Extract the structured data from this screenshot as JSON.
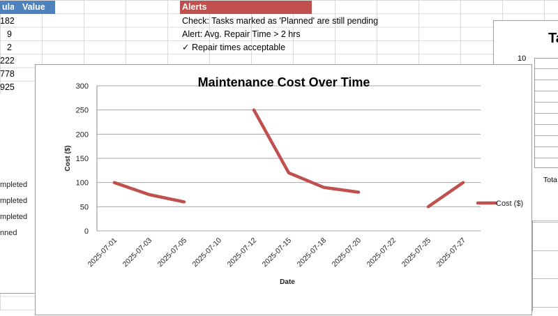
{
  "sheet": {
    "table_header": {
      "formula_col": "ula",
      "value_col": "Value"
    },
    "formula_values": [
      "182",
      "9",
      "2",
      "222",
      "778",
      "925"
    ],
    "alerts": {
      "header": "Alerts",
      "items": [
        "Check: Tasks marked as 'Planned' are still pending",
        "Alert: Avg. Repair Time > 2 hrs",
        "✓ Repair times acceptable"
      ]
    },
    "status_list": [
      "mpleted",
      "mpleted",
      "mpleted",
      "nned"
    ],
    "colors": {
      "header_blue": "#4f81bd",
      "alert_red": "#c0504d",
      "series": "#c0504d"
    }
  },
  "right_chart": {
    "title_partial": "Ta",
    "ytick_top": "10",
    "total_label": "Tota"
  },
  "chart_data": {
    "type": "line",
    "title": "Maintenance Cost Over Time",
    "xlabel": "Date",
    "ylabel": "Cost ($)",
    "ylim": [
      0,
      300
    ],
    "yticks": [
      0,
      50,
      100,
      150,
      200,
      250,
      300
    ],
    "grid": true,
    "legend_position": "right",
    "categories": [
      "2025-07-01",
      "2025-07-03",
      "2025-07-05",
      "2025-07-10",
      "2025-07-12",
      "2025-07-15",
      "2025-07-18",
      "2025-07-20",
      "2025-07-22",
      "2025-07-25",
      "2025-07-27"
    ],
    "series": [
      {
        "name": "Cost ($)",
        "color": "#c0504d",
        "values": [
          100,
          75,
          60,
          null,
          250,
          120,
          90,
          80,
          null,
          50,
          100
        ]
      }
    ]
  }
}
